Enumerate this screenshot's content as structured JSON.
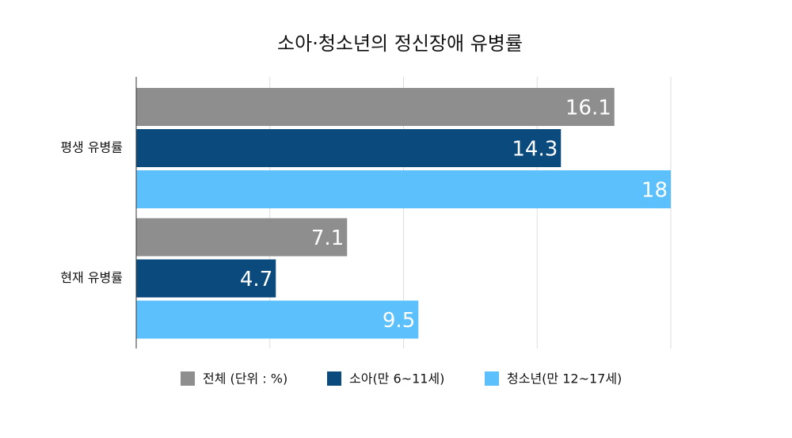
{
  "chart_data": {
    "type": "hbar",
    "title": "소아·청소년의 정신장애 유병률",
    "categories": [
      "평생 유병률",
      "현재 유병률"
    ],
    "series": [
      {
        "name": "전체 (단위 : %)",
        "color": "#8e8e8e",
        "values": [
          16.1,
          7.1
        ]
      },
      {
        "name": "소아(만 6~11세)",
        "color": "#0b4a7d",
        "values": [
          14.3,
          4.7
        ]
      },
      {
        "name": "청소년(만 12~17세)",
        "color": "#5bc0fb",
        "values": [
          18,
          9.5
        ]
      }
    ],
    "xlim": [
      0,
      18
    ],
    "xticks": [
      0,
      4.5,
      9,
      13.5,
      18
    ],
    "grid": true,
    "legend": "bottom"
  }
}
